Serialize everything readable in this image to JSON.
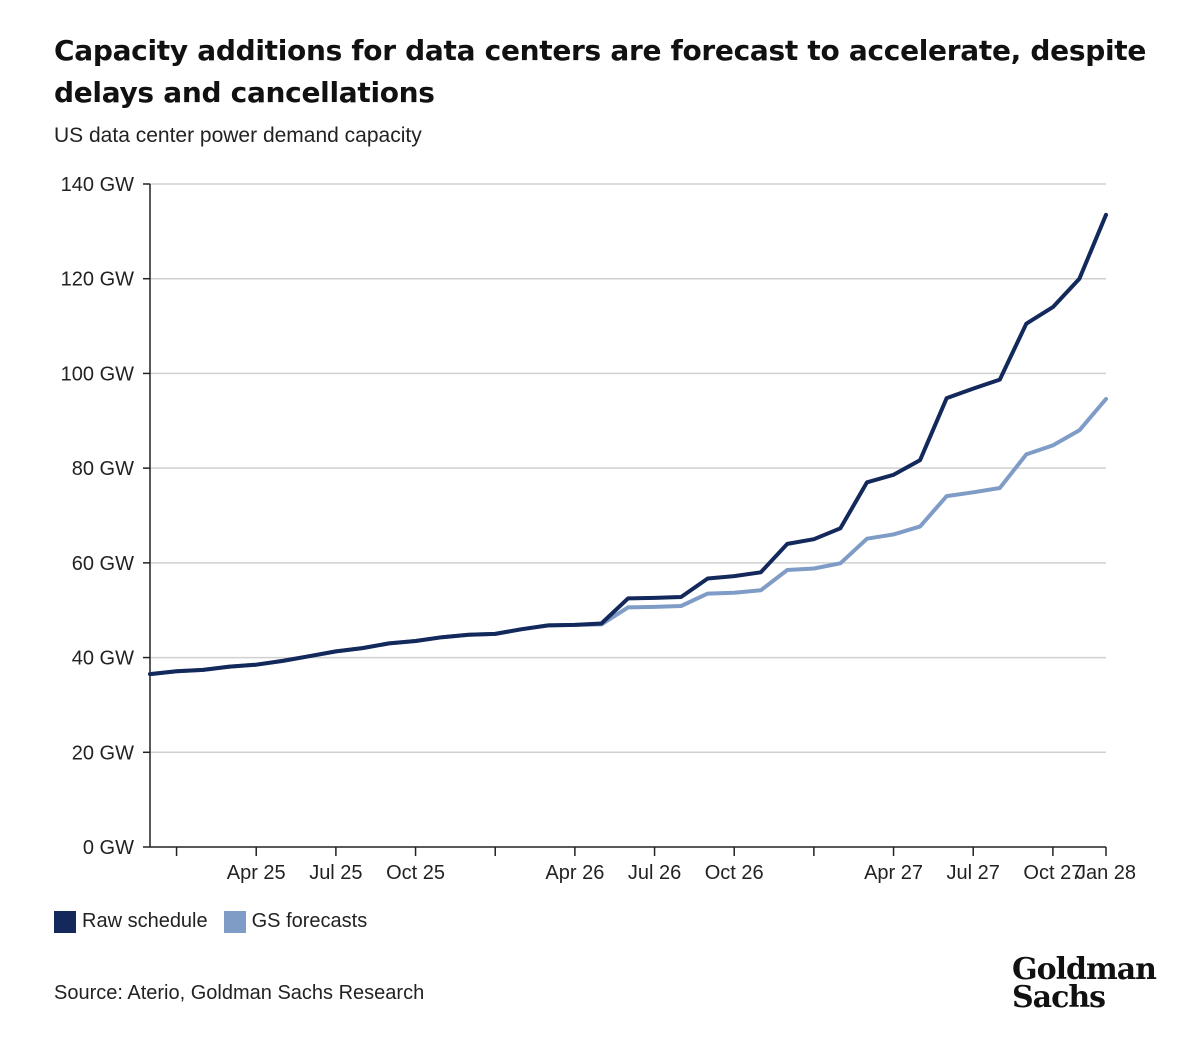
{
  "header": {
    "title": "Capacity additions for data centers are forecast to accelerate, despite delays and cancellations",
    "subtitle": "US data center power demand capacity"
  },
  "footer": {
    "source": "Source: Aterio, Goldman Sachs Research",
    "logo_line1": "Goldman",
    "logo_line2": "Sachs"
  },
  "chart_data": {
    "type": "line",
    "x_start": "Jan 25",
    "x_step_months": 1,
    "xlim_months": [
      0,
      36
    ],
    "ylim": [
      0,
      140
    ],
    "yticks": [
      0,
      20,
      40,
      60,
      80,
      100,
      120,
      140
    ],
    "ytick_labels": [
      "0 GW",
      "20 GW",
      "40 GW",
      "60 GW",
      "80 GW",
      "100 GW",
      "120 GW",
      "140 GW"
    ],
    "xticks": [
      {
        "m": 1,
        "label": ""
      },
      {
        "m": 4,
        "label": "Apr 25"
      },
      {
        "m": 7,
        "label": "Jul 25"
      },
      {
        "m": 10,
        "label": "Oct 25"
      },
      {
        "m": 13,
        "label": ""
      },
      {
        "m": 16,
        "label": "Apr 26"
      },
      {
        "m": 19,
        "label": "Jul 26"
      },
      {
        "m": 22,
        "label": "Oct 26"
      },
      {
        "m": 25,
        "label": ""
      },
      {
        "m": 28,
        "label": "Apr 27"
      },
      {
        "m": 31,
        "label": "Jul 27"
      },
      {
        "m": 34,
        "label": "Oct 27"
      },
      {
        "m": 36,
        "label": "Jan 28"
      }
    ],
    "grid": true,
    "legend_position": "bottom-left",
    "series": [
      {
        "name": "Raw schedule",
        "color": "#13285b",
        "values": [
          36.5,
          37.1,
          37.4,
          38.1,
          38.5,
          39.3,
          40.3,
          41.3,
          42.0,
          43.0,
          43.5,
          44.3,
          44.8,
          45.0,
          46.0,
          46.8,
          46.9,
          47.2,
          52.5,
          52.6,
          52.8,
          56.7,
          57.2,
          58.0,
          64.0,
          65.0,
          67.3,
          77.0,
          78.6,
          81.7,
          94.8,
          96.8,
          98.7,
          110.5,
          114.0,
          120.0,
          133.5
        ]
      },
      {
        "name": "GS forecasts",
        "color": "#7f9cc7",
        "values": [
          36.5,
          37.1,
          37.4,
          38.1,
          38.5,
          39.3,
          40.3,
          41.3,
          42.0,
          43.0,
          43.5,
          44.3,
          44.8,
          45.0,
          46.0,
          46.8,
          46.9,
          47.0,
          50.6,
          50.7,
          50.9,
          53.5,
          53.7,
          54.2,
          58.5,
          58.8,
          59.9,
          65.1,
          66.0,
          67.7,
          74.1,
          74.9,
          75.8,
          82.9,
          84.8,
          88.0,
          94.6
        ]
      }
    ]
  }
}
